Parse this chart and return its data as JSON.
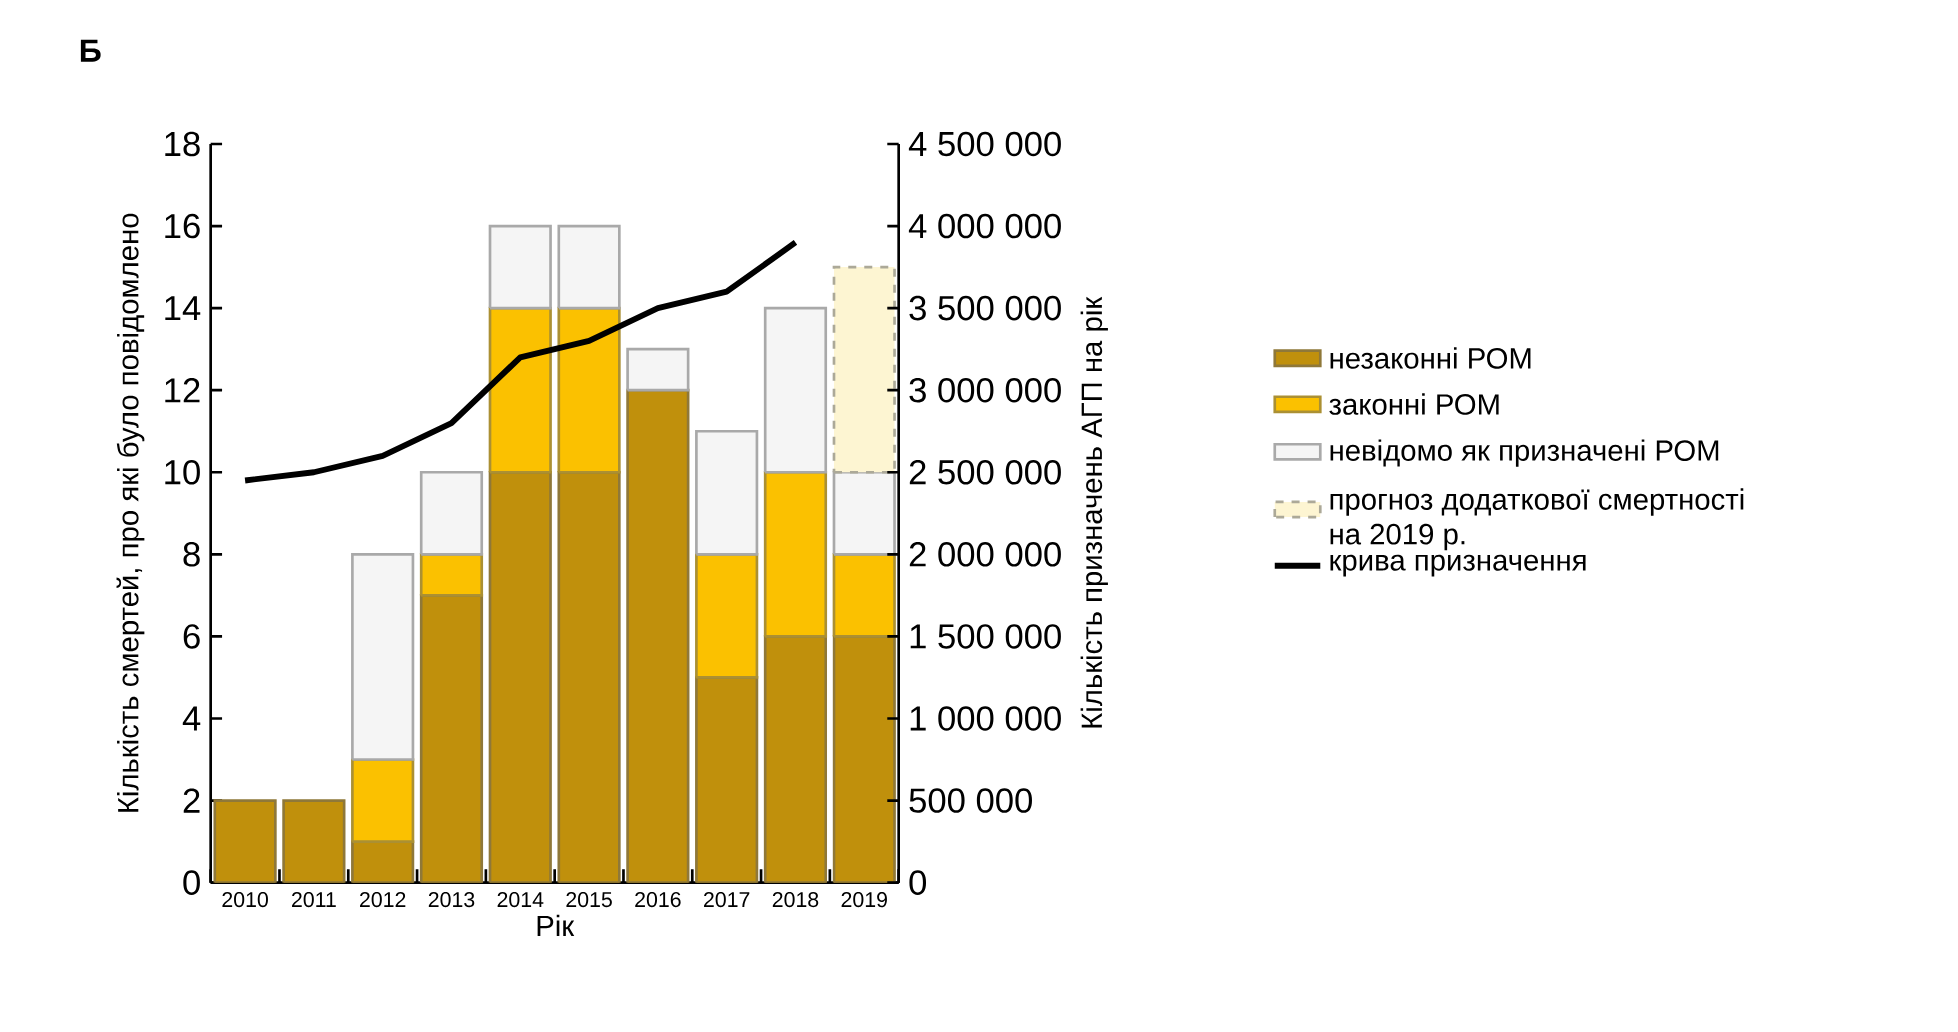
{
  "chart_data": {
    "type": "bar",
    "title": "Б",
    "xlabel": "Рік",
    "ylabel": "Кількість смертей, про які було повідомлено",
    "y2label": "Кількість призначень АГП на рік",
    "categories": [
      "2010",
      "2011",
      "2012",
      "2013",
      "2014",
      "2015",
      "2016",
      "2017",
      "2018",
      "2019"
    ],
    "stacked": true,
    "series": [
      {
        "name": "незаконні РОМ",
        "color": "#c0900c",
        "values": [
          2,
          2,
          1,
          7,
          10,
          10,
          12,
          5,
          6,
          6
        ]
      },
      {
        "name": "законні РОМ",
        "color": "#fbc100",
        "values": [
          0,
          0,
          2,
          1,
          4,
          4,
          0,
          3,
          4,
          2
        ]
      },
      {
        "name": "невідомо як призначені РОМ",
        "color": "#f5f5f5",
        "values": [
          0,
          0,
          5,
          2,
          2,
          2,
          1,
          3,
          4,
          2
        ]
      },
      {
        "name": "прогноз додаткової смертності на 2019 р.",
        "color": "#fdf5d2",
        "line_style": "dashed",
        "values": [
          null,
          null,
          null,
          null,
          null,
          null,
          null,
          null,
          null,
          5
        ]
      },
      {
        "name": "крива призначення",
        "type": "line",
        "axis": "y2",
        "color": "#000000",
        "values": [
          2450000,
          2500000,
          2600000,
          2800000,
          3200000,
          3300000,
          3500000,
          3600000,
          3900000,
          null
        ]
      }
    ],
    "ylim": [
      0,
      18
    ],
    "yticks": [
      0,
      2,
      4,
      6,
      8,
      10,
      12,
      14,
      16,
      18
    ],
    "y2lim": [
      0,
      4500000
    ],
    "y2ticks": [
      {
        "value": 0,
        "label": "0"
      },
      {
        "value": 500000,
        "label": "500 000"
      },
      {
        "value": 1000000,
        "label": "1 000 000"
      },
      {
        "value": 1500000,
        "label": "1 500 000"
      },
      {
        "value": 2000000,
        "label": "2 000 000"
      },
      {
        "value": 2500000,
        "label": "2 500 000"
      },
      {
        "value": 3000000,
        "label": "3 000 000"
      },
      {
        "value": 3500000,
        "label": "3 500 000"
      },
      {
        "value": 4000000,
        "label": "4 000 000"
      },
      {
        "value": 4500000,
        "label": "4 500 000"
      }
    ],
    "legend": "right"
  }
}
